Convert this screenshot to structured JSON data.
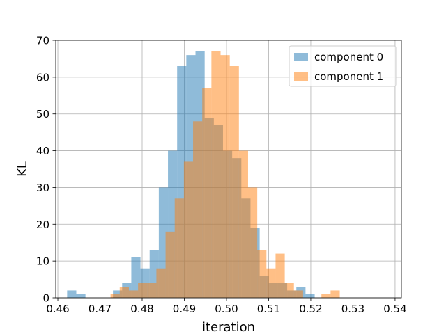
{
  "chart_data": {
    "type": "histogram",
    "title": "",
    "xlabel": "iteration",
    "ylabel": "KL",
    "xlim": [
      0.4595,
      0.5415
    ],
    "ylim": [
      0,
      70
    ],
    "xticks": [
      "0.46",
      "0.47",
      "0.48",
      "0.49",
      "0.50",
      "0.51",
      "0.52",
      "0.53",
      "0.54"
    ],
    "yticks": [
      "0",
      "10",
      "20",
      "30",
      "40",
      "50",
      "60",
      "70"
    ],
    "grid": true,
    "legend_position": "top-right",
    "alpha": 0.5,
    "series": [
      {
        "name": "component 0",
        "color": "#1f77b4",
        "bin_start": 0.4622,
        "bin_width": 0.002175,
        "counts": [
          2,
          1,
          0,
          0,
          0,
          2,
          4,
          11,
          8,
          13,
          30,
          40,
          63,
          66,
          67,
          49,
          47,
          40,
          38,
          27,
          19,
          6,
          4,
          4,
          2,
          3,
          1
        ]
      },
      {
        "name": "component 1",
        "color": "#ff7f0e",
        "bin_start": 0.4725,
        "bin_width": 0.002175,
        "counts": [
          1,
          3,
          2,
          4,
          4,
          8,
          18,
          27,
          37,
          48,
          57,
          67,
          66,
          63,
          40,
          30,
          13,
          8,
          12,
          4,
          2,
          0,
          0,
          1,
          2
        ]
      }
    ]
  }
}
